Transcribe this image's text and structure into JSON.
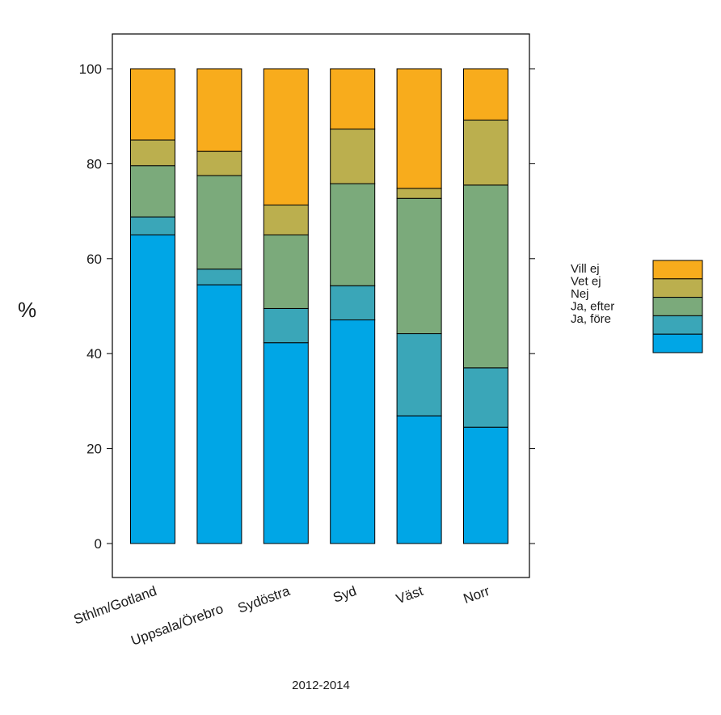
{
  "chart_data": {
    "type": "bar",
    "stacked": true,
    "title": "",
    "xlabel": "2012-2014",
    "ylabel": "%",
    "ylim": [
      -6.5,
      107
    ],
    "yticks": [
      0,
      20,
      40,
      60,
      80,
      100
    ],
    "ytick_labels": [
      "0",
      "20",
      "40",
      "60",
      "80",
      "100"
    ],
    "categories": [
      "Sthlm/Gotland",
      "Uppsala/Örebro",
      "Sydöstra",
      "Syd",
      "Väst",
      "Norr"
    ],
    "series": [
      {
        "name": "Ja, före",
        "color": "#00A6E6",
        "values": [
          65.0,
          54.5,
          42.3,
          47.1,
          26.9,
          24.5
        ]
      },
      {
        "name": "Ja, efter",
        "color": "#3AA6B8",
        "values": [
          3.8,
          3.3,
          7.2,
          7.2,
          17.3,
          12.5
        ]
      },
      {
        "name": "Nej",
        "color": "#7BAA7B",
        "values": [
          10.8,
          19.7,
          15.5,
          21.5,
          28.5,
          38.5
        ]
      },
      {
        "name": "Vet ej",
        "color": "#BBAF4E",
        "values": [
          5.4,
          5.1,
          6.3,
          11.5,
          2.1,
          13.7
        ]
      },
      {
        "name": "Vill ej",
        "color": "#F8AC1C",
        "values": [
          15.0,
          17.4,
          28.7,
          12.7,
          25.2,
          10.8
        ]
      }
    ],
    "legend": {
      "placement": "right",
      "entries": [
        "Vill ej",
        "Vet ej",
        "Nej",
        "Ja, efter",
        "Ja, före"
      ]
    },
    "grid": false
  }
}
